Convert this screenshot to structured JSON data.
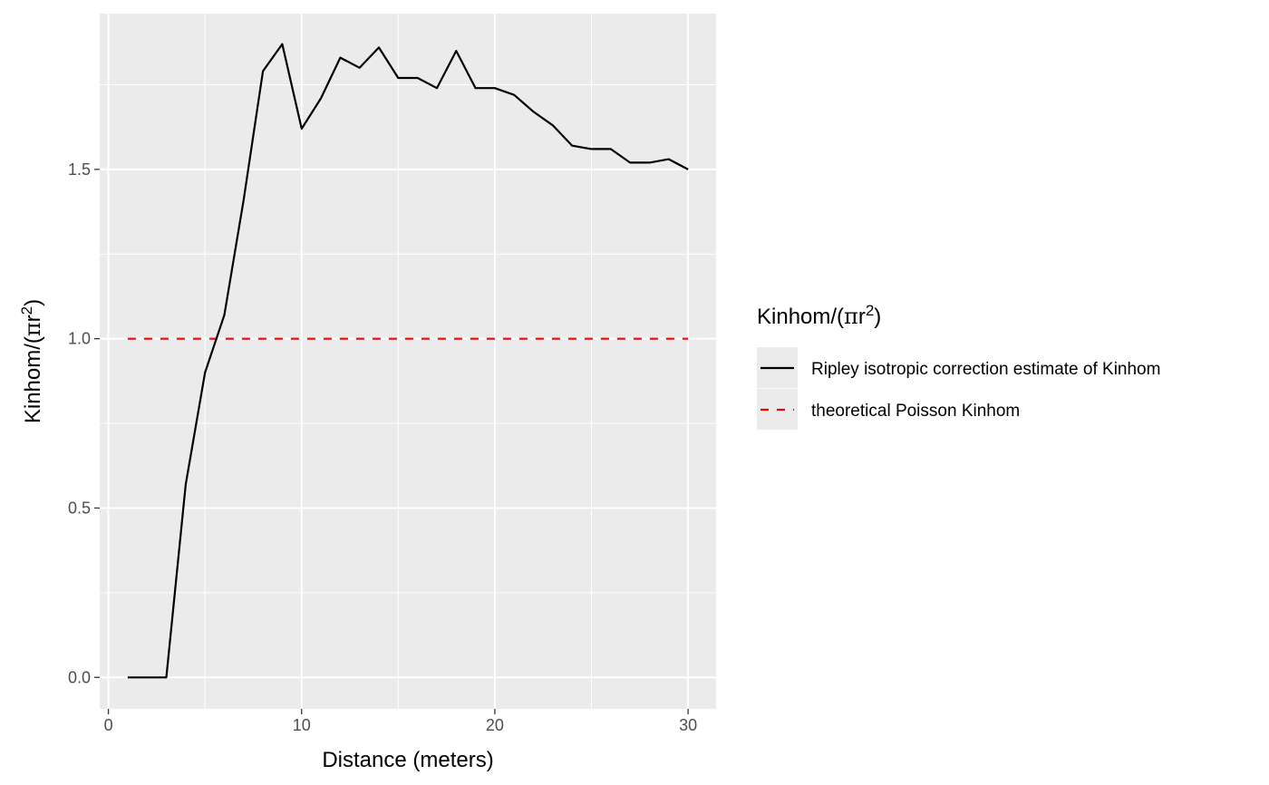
{
  "chart_data": {
    "type": "line",
    "title": "",
    "xlabel": "Distance (meters)",
    "ylabel": {
      "prefix": "Kinhom/(",
      "pi": "π",
      "r": "r",
      "sup": "2",
      "suffix": ")"
    },
    "xlim": [
      -0.45,
      31.45
    ],
    "ylim": [
      -0.093,
      1.96
    ],
    "x_ticks": [
      0,
      10,
      20,
      30
    ],
    "x_tick_labels": [
      "0",
      "10",
      "20",
      "30"
    ],
    "y_ticks": [
      0,
      0.5,
      1,
      1.5
    ],
    "y_tick_labels": [
      "0.0",
      "0.5",
      "1.0",
      "1.5"
    ],
    "grid": true,
    "legend": {
      "position": "right",
      "title": {
        "prefix": "Kinhom/(",
        "pi": "π",
        "r": "r",
        "sup": "2",
        "suffix": ")"
      }
    },
    "series": [
      {
        "name": "Ripley isotropic correction estimate of Kinhom",
        "color": "#000000",
        "linestyle": "solid",
        "x": [
          1,
          2,
          3,
          4,
          5,
          6,
          7,
          8,
          9,
          10,
          11,
          12,
          13,
          14,
          15,
          16,
          17,
          18,
          19,
          20,
          21,
          22,
          23,
          24,
          25,
          26,
          27,
          28,
          29,
          30
        ],
        "y": [
          0.0,
          0.0,
          0.0,
          0.57,
          0.9,
          1.07,
          1.41,
          1.79,
          1.87,
          1.62,
          1.71,
          1.83,
          1.8,
          1.86,
          1.77,
          1.77,
          1.74,
          1.85,
          1.74,
          1.74,
          1.72,
          1.67,
          1.63,
          1.57,
          1.56,
          1.56,
          1.52,
          1.52,
          1.53,
          1.5
        ]
      },
      {
        "name": "theoretical Poisson Kinhom",
        "color": "#ff0000",
        "linestyle": "dashed",
        "x": [
          1,
          30
        ],
        "y": [
          1.0,
          1.0
        ]
      }
    ]
  }
}
